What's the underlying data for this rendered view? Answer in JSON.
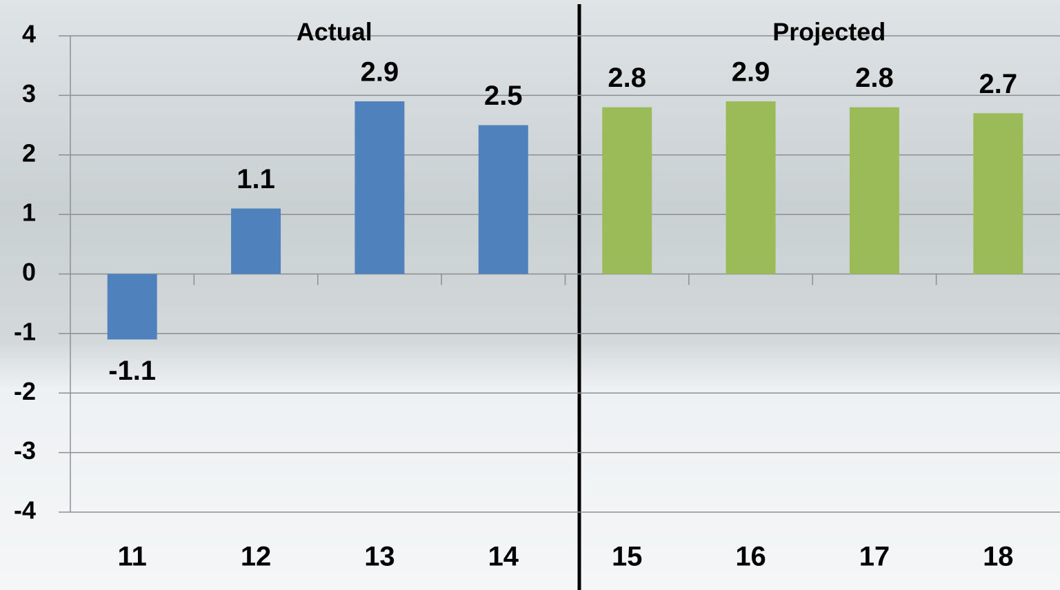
{
  "chart_data": {
    "type": "bar",
    "categories": [
      "11",
      "12",
      "13",
      "14",
      "15",
      "16",
      "17",
      "18"
    ],
    "series": [
      {
        "name": "Actual",
        "color": "#4f81bd",
        "values": [
          -1.1,
          1.1,
          2.9,
          2.5,
          null,
          null,
          null,
          null
        ]
      },
      {
        "name": "Projected",
        "color": "#9bbb59",
        "values": [
          null,
          null,
          null,
          null,
          2.8,
          2.9,
          2.8,
          2.7
        ]
      }
    ],
    "ylim": [
      -4,
      4
    ],
    "yticks": [
      -4,
      -3,
      -2,
      -1,
      0,
      1,
      2,
      3,
      4
    ],
    "grid": true
  }
}
